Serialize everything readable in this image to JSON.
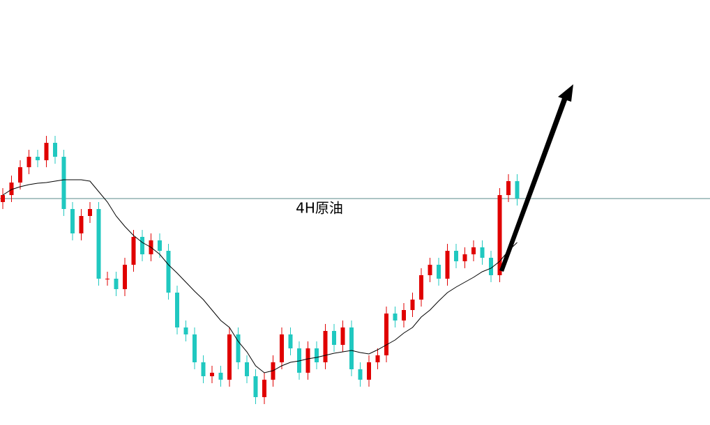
{
  "chart_data": {
    "type": "candlestick",
    "title": "4H原油",
    "up_color": "#e00000",
    "down_color": "#20c8c0",
    "ylim": [
      0,
      610
    ],
    "hline": 325,
    "open": [
      320,
      330,
      348,
      370,
      385,
      380,
      405,
      385,
      310,
      275,
      300,
      310,
      210,
      210,
      195,
      230,
      270,
      245,
      265,
      250,
      190,
      140,
      130,
      90,
      70,
      75,
      65,
      130,
      90,
      70,
      40,
      65,
      90,
      130,
      110,
      75,
      110,
      90,
      135,
      115,
      140,
      80,
      65,
      90,
      100,
      160,
      150,
      165,
      180,
      215,
      230,
      210,
      250,
      235,
      245,
      255,
      240,
      215,
      330,
      350
    ],
    "high": [
      340,
      358,
      380,
      395,
      395,
      415,
      415,
      395,
      320,
      310,
      320,
      320,
      220,
      220,
      240,
      280,
      280,
      275,
      275,
      260,
      200,
      150,
      140,
      100,
      85,
      85,
      140,
      140,
      100,
      80,
      75,
      100,
      140,
      140,
      120,
      120,
      120,
      145,
      145,
      150,
      150,
      90,
      100,
      110,
      170,
      170,
      175,
      190,
      225,
      240,
      240,
      260,
      260,
      255,
      265,
      265,
      250,
      340,
      360,
      360
    ],
    "low": [
      310,
      320,
      338,
      360,
      370,
      370,
      375,
      300,
      265,
      265,
      290,
      200,
      200,
      185,
      185,
      220,
      235,
      235,
      240,
      180,
      130,
      120,
      80,
      60,
      60,
      55,
      55,
      80,
      60,
      30,
      30,
      55,
      80,
      100,
      65,
      65,
      80,
      80,
      105,
      105,
      70,
      55,
      55,
      80,
      90,
      140,
      140,
      155,
      170,
      205,
      200,
      200,
      225,
      225,
      235,
      230,
      205,
      205,
      320,
      315
    ],
    "close": [
      330,
      348,
      370,
      385,
      380,
      405,
      385,
      310,
      275,
      300,
      310,
      210,
      210,
      195,
      230,
      270,
      245,
      265,
      250,
      190,
      140,
      130,
      90,
      70,
      75,
      65,
      130,
      90,
      70,
      40,
      65,
      90,
      130,
      110,
      75,
      110,
      90,
      135,
      115,
      140,
      80,
      65,
      90,
      100,
      160,
      150,
      165,
      180,
      215,
      230,
      210,
      250,
      235,
      245,
      255,
      240,
      215,
      330,
      350,
      325
    ],
    "ma": {
      "color": "#000000",
      "values": [
        330,
        338,
        342,
        345,
        347,
        348,
        350,
        352,
        352,
        352,
        350,
        335,
        320,
        300,
        285,
        272,
        262,
        255,
        245,
        230,
        218,
        205,
        192,
        180,
        165,
        150,
        140,
        120,
        105,
        85,
        75,
        78,
        85,
        90,
        92,
        95,
        97,
        100,
        103,
        105,
        107,
        104,
        102,
        108,
        115,
        122,
        132,
        140,
        155,
        165,
        178,
        190,
        198,
        205,
        212,
        220,
        225,
        235,
        250,
        262
      ]
    }
  }
}
